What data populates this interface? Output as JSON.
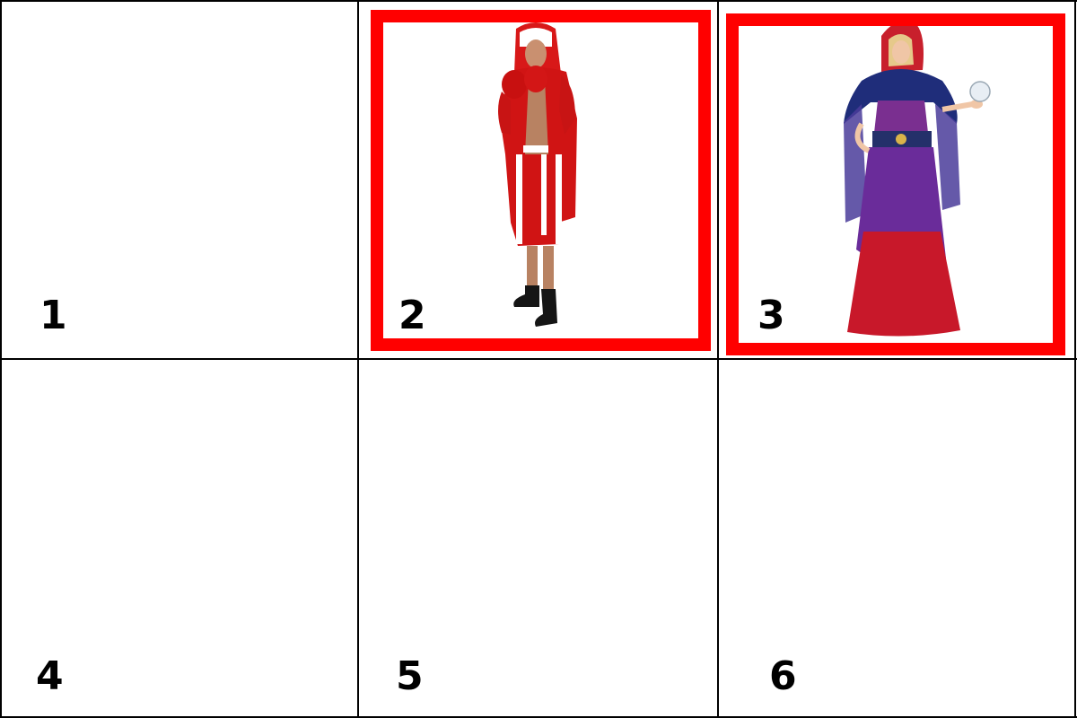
{
  "grid": {
    "cells": [
      {
        "number": "1",
        "selected": false,
        "image": ""
      },
      {
        "number": "2",
        "selected": true,
        "image": "boxer-costume-image"
      },
      {
        "number": "3",
        "selected": true,
        "image": "fortune-teller-costume-image"
      },
      {
        "number": "4",
        "selected": false,
        "image": ""
      },
      {
        "number": "5",
        "selected": false,
        "image": ""
      },
      {
        "number": "6",
        "selected": false,
        "image": ""
      }
    ]
  },
  "colors": {
    "selection": "#ff0000",
    "gridline": "#000000",
    "background": "#ffffff"
  }
}
